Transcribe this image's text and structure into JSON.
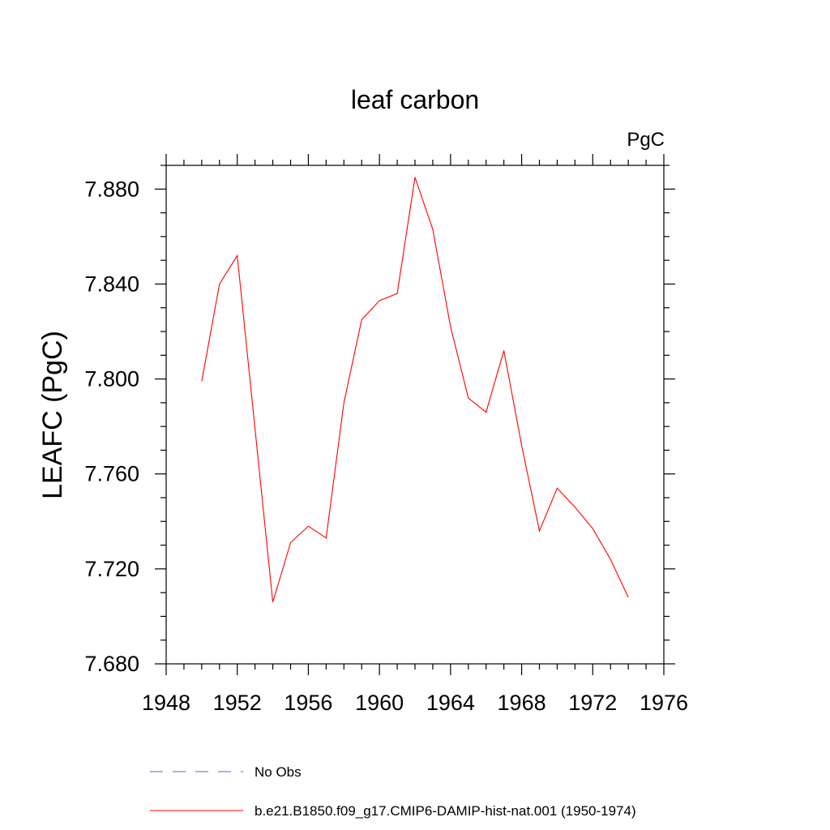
{
  "chart_data": {
    "type": "line",
    "title": "leaf carbon",
    "units": "PgC",
    "xlabel": "",
    "ylabel": "LEAFC  (PgC)",
    "xlim": [
      1948,
      1976
    ],
    "ylim": [
      7.68,
      7.89
    ],
    "xticks": [
      "1948",
      "1952",
      "1956",
      "1960",
      "1964",
      "1968",
      "1972",
      "1976"
    ],
    "yticks": [
      "7.680",
      "7.720",
      "7.760",
      "7.800",
      "7.840",
      "7.880"
    ],
    "grid": false,
    "legend_position": "bottom",
    "series": [
      {
        "name": "No Obs",
        "color": "#6a5acd",
        "style": "dashed",
        "x": [],
        "y": []
      },
      {
        "name": "b.e21.B1850.f09_g17.CMIP6-DAMIP-hist-nat.001 (1950-1974)",
        "color": "#ff0000",
        "style": "solid",
        "x": [
          1950,
          1951,
          1952,
          1953,
          1954,
          1955,
          1956,
          1957,
          1958,
          1959,
          1960,
          1961,
          1962,
          1963,
          1964,
          1965,
          1966,
          1967,
          1968,
          1969,
          1970,
          1971,
          1972,
          1973,
          1974
        ],
        "y": [
          7.799,
          7.84,
          7.852,
          7.779,
          7.706,
          7.731,
          7.738,
          7.733,
          7.79,
          7.825,
          7.833,
          7.836,
          7.885,
          7.863,
          7.822,
          7.792,
          7.786,
          7.812,
          7.772,
          7.736,
          7.754,
          7.746,
          7.737,
          7.724,
          7.708
        ]
      }
    ]
  }
}
